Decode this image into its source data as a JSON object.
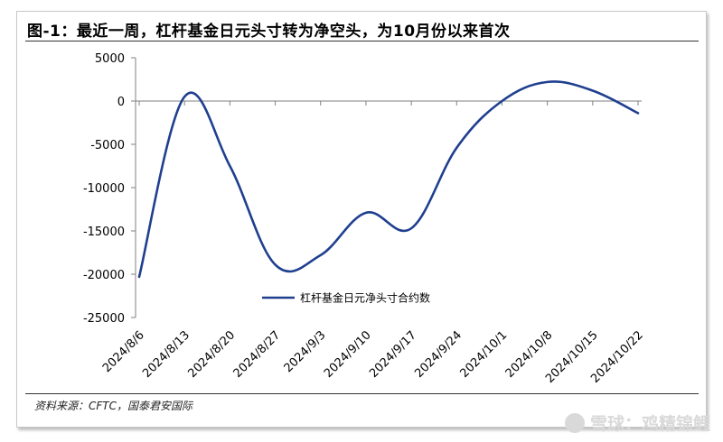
{
  "title": "图-1：最近一周，杠杆基金日元头寸转为净空头，为10月份以来首次",
  "source": "资料来源：CFTC，国泰君安国际",
  "watermark": "雪球：鸡精锦鲤",
  "colors": {
    "line": "#1f3f8f",
    "axis": "#808080"
  },
  "chart_data": {
    "type": "line",
    "title": "图-1：最近一周，杠杆基金日元头寸转为净空头，为10月份以来首次",
    "xlabel": "",
    "ylabel": "",
    "ylim": [
      -25000,
      5000
    ],
    "yticks": [
      5000,
      0,
      -5000,
      -10000,
      -15000,
      -20000,
      -25000
    ],
    "xticks": [
      "2024/8/6",
      "2024/8/13",
      "2024/8/20",
      "2024/8/27",
      "2024/9/3",
      "2024/9/10",
      "2024/9/17",
      "2024/9/24",
      "2024/10/1",
      "2024/10/8",
      "2024/10/15",
      "2024/10/22"
    ],
    "legend_position": "center",
    "grid": false,
    "series": [
      {
        "name": "杠杆基金日元净头寸合约数",
        "x": [
          "2024/8/6",
          "2024/8/13",
          "2024/8/20",
          "2024/8/27",
          "2024/9/3",
          "2024/9/10",
          "2024/9/17",
          "2024/9/24",
          "2024/10/1",
          "2024/10/8",
          "2024/10/15",
          "2024/10/22"
        ],
        "values": [
          -20300,
          500,
          -7500,
          -18900,
          -17800,
          -12900,
          -14700,
          -5400,
          0,
          2200,
          1200,
          -1400
        ]
      }
    ]
  }
}
